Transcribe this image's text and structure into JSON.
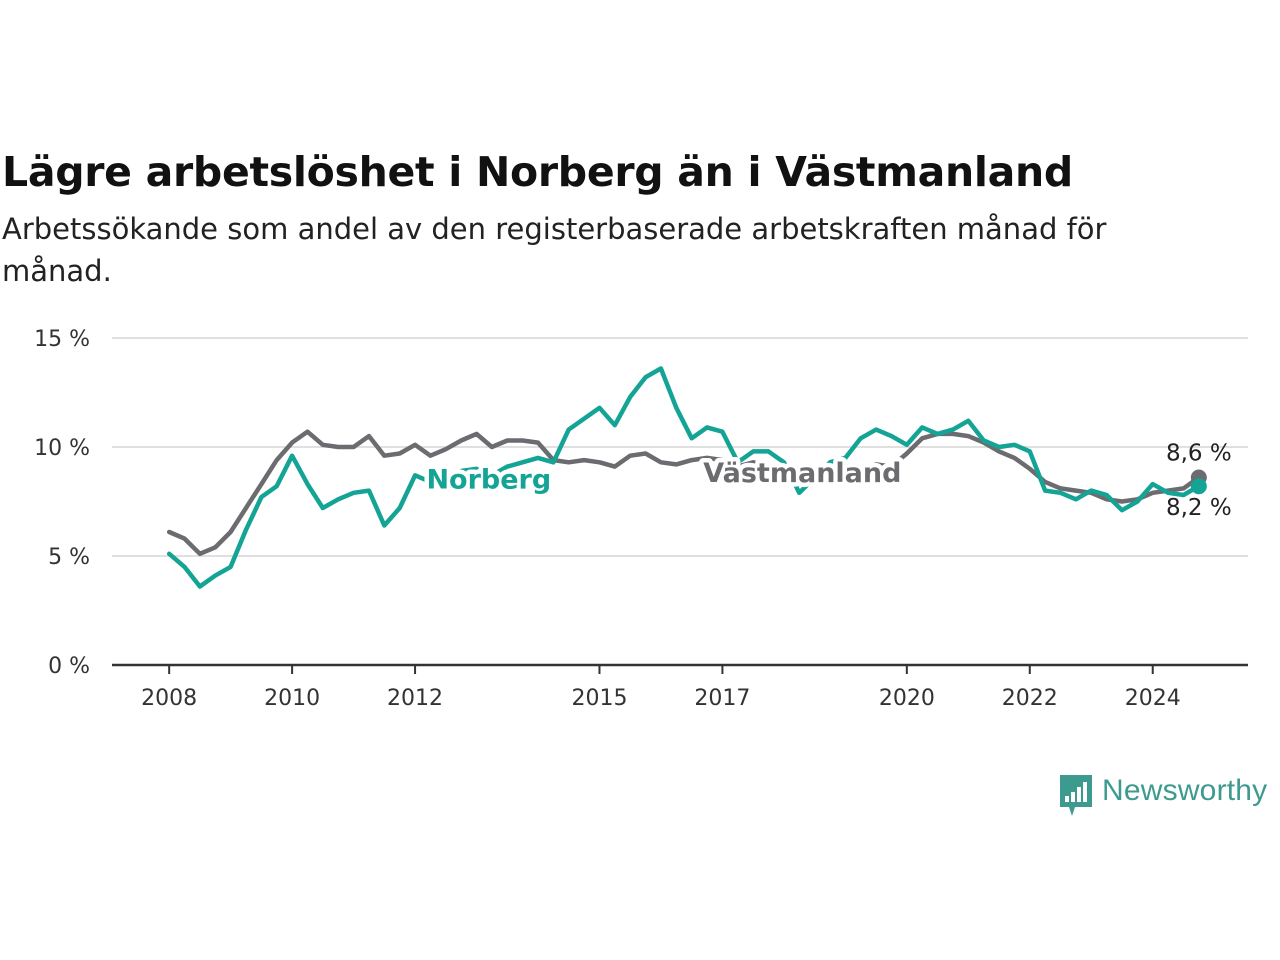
{
  "header": {
    "title": "Lägre arbetslöshet i Norberg än i Västmanland",
    "subtitle": "Arbetssökande som andel av den registerbaserade arbetskraften månad för månad."
  },
  "logo": {
    "icon": "bar-chart-speech-bubble-icon",
    "text": "Newsworthy",
    "color": "#3d9a8f"
  },
  "chart_data": {
    "type": "line",
    "ylim": [
      0,
      15
    ],
    "y_ticks": [
      0,
      5,
      10,
      15
    ],
    "y_tick_labels": [
      "0 %",
      "5 %",
      "10 %",
      "15 %"
    ],
    "x_ticks": [
      2008,
      2010,
      2012,
      2015,
      2017,
      2020,
      2022,
      2024
    ],
    "x_tick_labels": [
      "2008",
      "2010",
      "2012",
      "2015",
      "2017",
      "2020",
      "2022",
      "2024"
    ],
    "grid": true,
    "series": [
      {
        "name": "Västmanland",
        "color": "#6c6b70",
        "final_label": "8,6 %",
        "points": [
          [
            2008.0,
            6.1
          ],
          [
            2008.25,
            5.8
          ],
          [
            2008.5,
            5.1
          ],
          [
            2008.75,
            5.4
          ],
          [
            2009.0,
            6.1
          ],
          [
            2009.25,
            7.2
          ],
          [
            2009.5,
            8.3
          ],
          [
            2009.75,
            9.4
          ],
          [
            2010.0,
            10.2
          ],
          [
            2010.25,
            10.7
          ],
          [
            2010.5,
            10.1
          ],
          [
            2010.75,
            10.0
          ],
          [
            2011.0,
            10.0
          ],
          [
            2011.25,
            10.5
          ],
          [
            2011.5,
            9.6
          ],
          [
            2011.75,
            9.7
          ],
          [
            2012.0,
            10.1
          ],
          [
            2012.25,
            9.6
          ],
          [
            2012.5,
            9.9
          ],
          [
            2012.75,
            10.3
          ],
          [
            2013.0,
            10.6
          ],
          [
            2013.25,
            10.0
          ],
          [
            2013.5,
            10.3
          ],
          [
            2013.75,
            10.3
          ],
          [
            2014.0,
            10.2
          ],
          [
            2014.25,
            9.4
          ],
          [
            2014.5,
            9.3
          ],
          [
            2014.75,
            9.4
          ],
          [
            2015.0,
            9.3
          ],
          [
            2015.25,
            9.1
          ],
          [
            2015.5,
            9.6
          ],
          [
            2015.75,
            9.7
          ],
          [
            2016.0,
            9.3
          ],
          [
            2016.25,
            9.2
          ],
          [
            2016.5,
            9.4
          ],
          [
            2016.75,
            9.5
          ],
          [
            2017.0,
            9.4
          ],
          [
            2017.25,
            9.1
          ],
          [
            2017.5,
            9.3
          ],
          [
            2017.75,
            9.1
          ],
          [
            2018.0,
            9.0
          ],
          [
            2018.25,
            8.8
          ],
          [
            2018.5,
            8.8
          ],
          [
            2018.75,
            9.0
          ],
          [
            2019.0,
            9.1
          ],
          [
            2019.25,
            9.0
          ],
          [
            2019.5,
            9.2
          ],
          [
            2019.75,
            9.1
          ],
          [
            2020.0,
            9.7
          ],
          [
            2020.25,
            10.4
          ],
          [
            2020.5,
            10.6
          ],
          [
            2020.75,
            10.6
          ],
          [
            2021.0,
            10.5
          ],
          [
            2021.25,
            10.2
          ],
          [
            2021.5,
            9.8
          ],
          [
            2021.75,
            9.5
          ],
          [
            2022.0,
            9.0
          ],
          [
            2022.25,
            8.4
          ],
          [
            2022.5,
            8.1
          ],
          [
            2022.75,
            8.0
          ],
          [
            2023.0,
            7.9
          ],
          [
            2023.25,
            7.6
          ],
          [
            2023.5,
            7.5
          ],
          [
            2023.75,
            7.6
          ],
          [
            2024.0,
            7.9
          ],
          [
            2024.25,
            8.0
          ],
          [
            2024.5,
            8.1
          ],
          [
            2024.75,
            8.6
          ]
        ]
      },
      {
        "name": "Norberg",
        "color": "#14a496",
        "final_label": "8,2 %",
        "points": [
          [
            2008.0,
            5.1
          ],
          [
            2008.25,
            4.5
          ],
          [
            2008.5,
            3.6
          ],
          [
            2008.75,
            4.1
          ],
          [
            2009.0,
            4.5
          ],
          [
            2009.25,
            6.2
          ],
          [
            2009.5,
            7.7
          ],
          [
            2009.75,
            8.2
          ],
          [
            2010.0,
            9.6
          ],
          [
            2010.25,
            8.3
          ],
          [
            2010.5,
            7.2
          ],
          [
            2010.75,
            7.6
          ],
          [
            2011.0,
            7.9
          ],
          [
            2011.25,
            8.0
          ],
          [
            2011.5,
            6.4
          ],
          [
            2011.75,
            7.2
          ],
          [
            2012.0,
            8.7
          ],
          [
            2012.25,
            8.4
          ],
          [
            2012.5,
            8.0
          ],
          [
            2012.75,
            8.9
          ],
          [
            2013.0,
            9.0
          ],
          [
            2013.25,
            8.7
          ],
          [
            2013.5,
            9.1
          ],
          [
            2013.75,
            9.3
          ],
          [
            2014.0,
            9.5
          ],
          [
            2014.25,
            9.3
          ],
          [
            2014.5,
            10.8
          ],
          [
            2014.75,
            11.3
          ],
          [
            2015.0,
            11.8
          ],
          [
            2015.25,
            11.0
          ],
          [
            2015.5,
            12.3
          ],
          [
            2015.75,
            13.2
          ],
          [
            2016.0,
            13.6
          ],
          [
            2016.25,
            11.8
          ],
          [
            2016.5,
            10.4
          ],
          [
            2016.75,
            10.9
          ],
          [
            2017.0,
            10.7
          ],
          [
            2017.25,
            9.3
          ],
          [
            2017.5,
            9.8
          ],
          [
            2017.75,
            9.8
          ],
          [
            2018.0,
            9.3
          ],
          [
            2018.25,
            7.9
          ],
          [
            2018.5,
            8.6
          ],
          [
            2018.75,
            9.3
          ],
          [
            2019.0,
            9.5
          ],
          [
            2019.25,
            10.4
          ],
          [
            2019.5,
            10.8
          ],
          [
            2019.75,
            10.5
          ],
          [
            2020.0,
            10.1
          ],
          [
            2020.25,
            10.9
          ],
          [
            2020.5,
            10.6
          ],
          [
            2020.75,
            10.8
          ],
          [
            2021.0,
            11.2
          ],
          [
            2021.25,
            10.3
          ],
          [
            2021.5,
            10.0
          ],
          [
            2021.75,
            10.1
          ],
          [
            2022.0,
            9.8
          ],
          [
            2022.25,
            8.0
          ],
          [
            2022.5,
            7.9
          ],
          [
            2022.75,
            7.6
          ],
          [
            2023.0,
            8.0
          ],
          [
            2023.25,
            7.8
          ],
          [
            2023.5,
            7.1
          ],
          [
            2023.75,
            7.5
          ],
          [
            2024.0,
            8.3
          ],
          [
            2024.25,
            7.9
          ],
          [
            2024.5,
            7.8
          ],
          [
            2024.75,
            8.2
          ]
        ]
      }
    ],
    "annotations": [
      {
        "text": "Norberg",
        "series": "Norberg",
        "at_x": 2013.2,
        "at_y": 8.1,
        "color": "#14a496"
      },
      {
        "text": "Västmanland",
        "series": "Västmanland",
        "at_x": 2018.3,
        "at_y": 8.4,
        "color": "#6c6b70"
      }
    ]
  }
}
